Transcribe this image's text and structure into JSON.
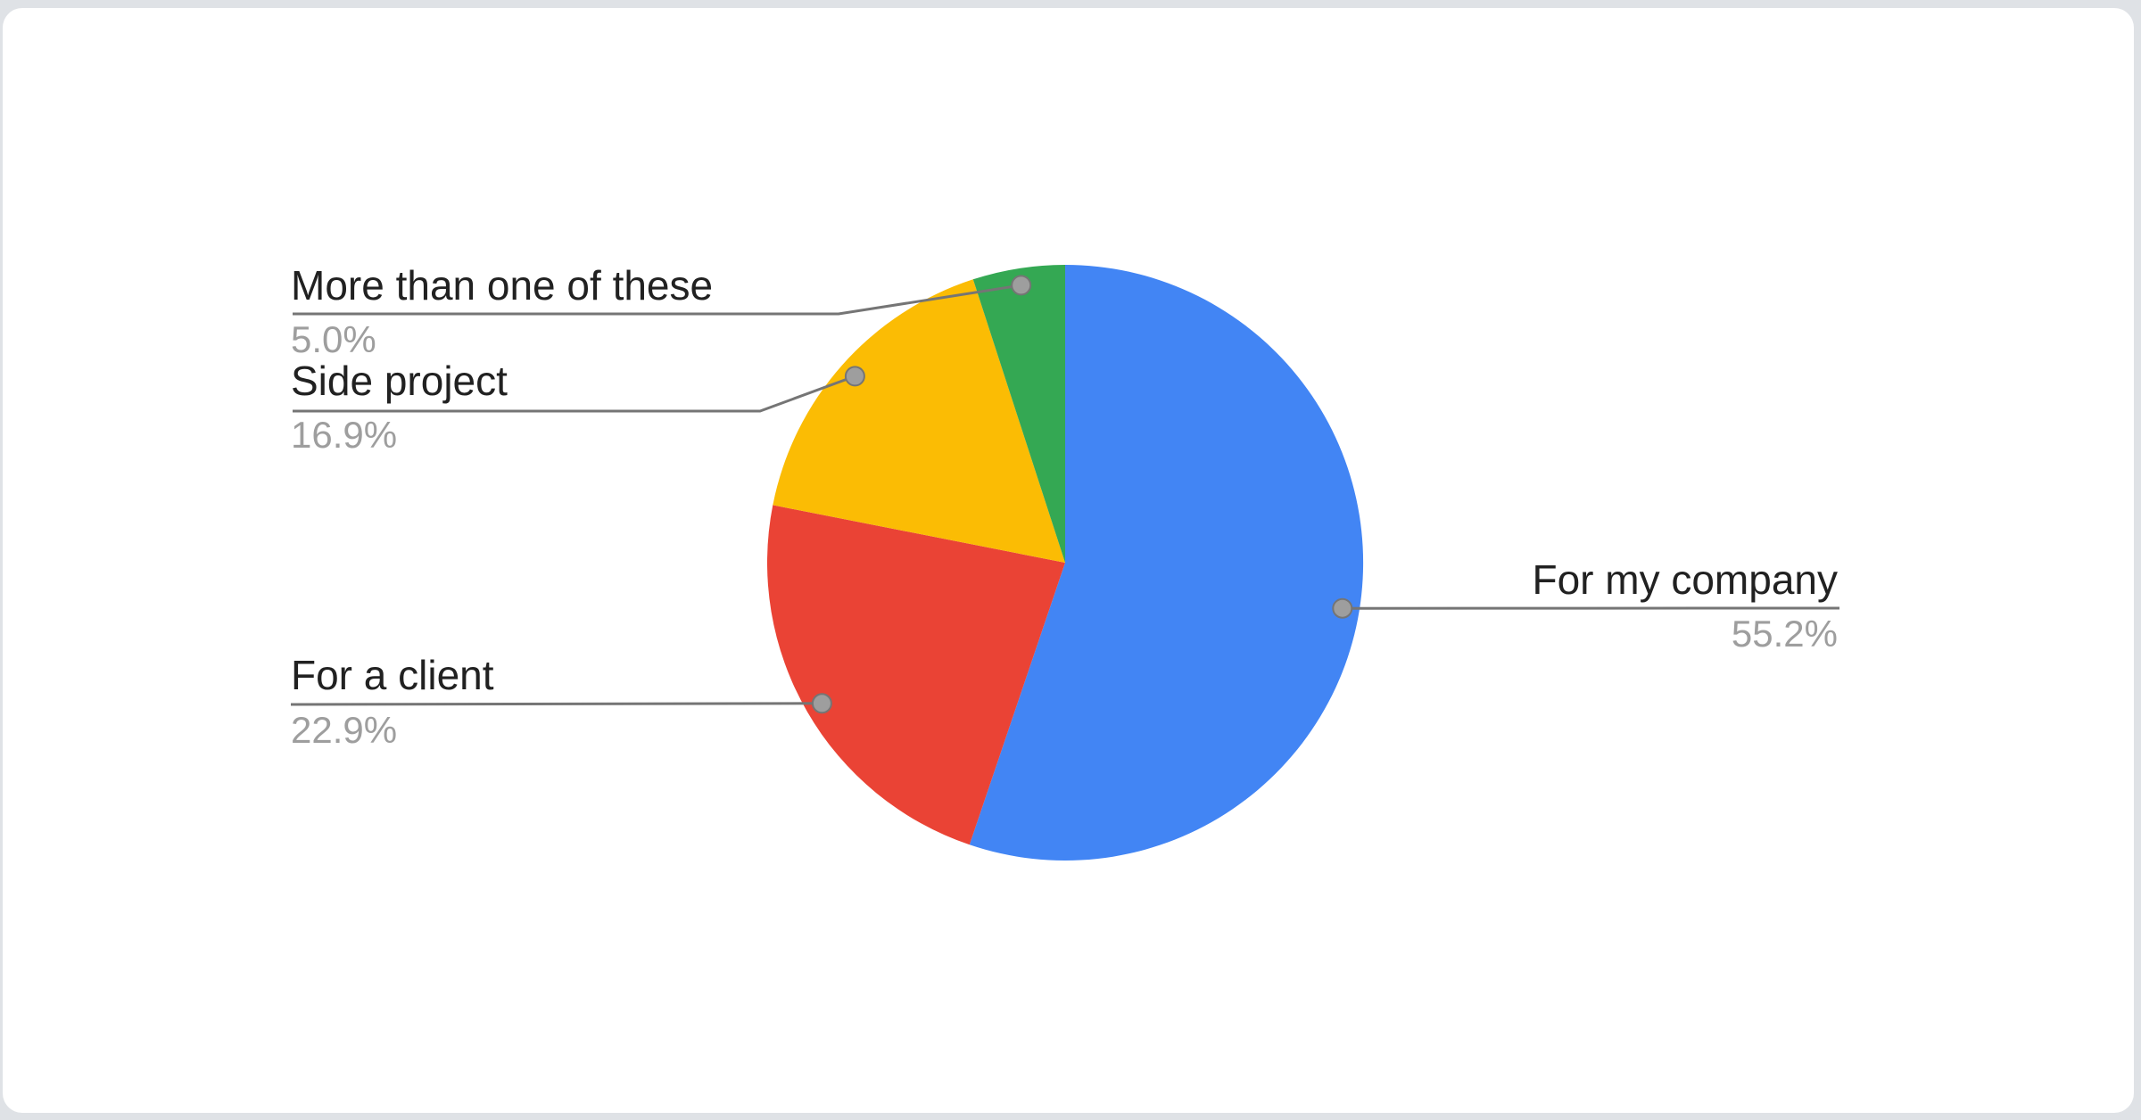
{
  "page": {
    "background_color": "#dfe2e6",
    "card_background_color": "#ffffff"
  },
  "chart_data": {
    "type": "pie",
    "title": "",
    "legend": "none",
    "label_style": "outside labels with leader lines and anchor dots",
    "direction": "clockwise",
    "start_angle_deg": 0,
    "label_name_color": "#212121",
    "label_pct_color": "#9e9e9e",
    "leader_line_color": "#757575",
    "dot_fill_color": "#9e9e9e",
    "dot_stroke_color": "#757575",
    "slices": [
      {
        "label": "For my company",
        "value": 55.2,
        "pct_label": "55.2%",
        "color": "#4285F4"
      },
      {
        "label": "For a client",
        "value": 22.9,
        "pct_label": "22.9%",
        "color": "#EA4335"
      },
      {
        "label": "Side project",
        "value": 16.9,
        "pct_label": "16.9%",
        "color": "#FBBC04"
      },
      {
        "label": "More than one of these",
        "value": 5.0,
        "pct_label": "5.0%",
        "color": "#34A853"
      }
    ]
  }
}
